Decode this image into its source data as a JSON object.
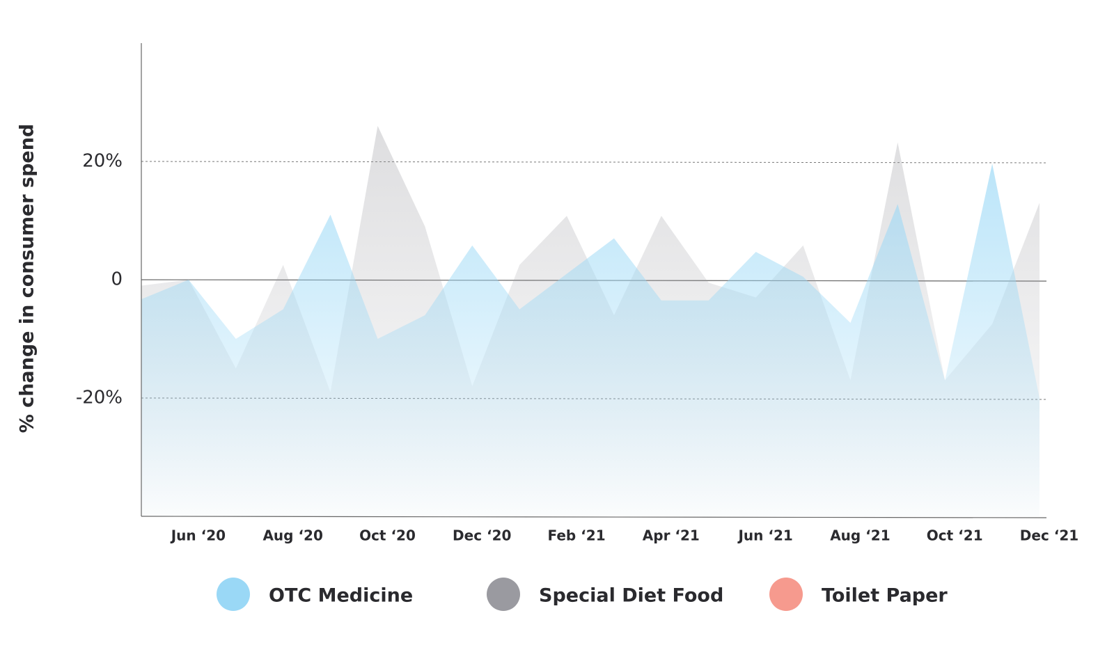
{
  "chart_data": {
    "type": "area",
    "y_label": "% change in consumer spend",
    "categories": [
      null,
      "Jun ‘20",
      null,
      "Aug ‘20",
      null,
      "Oct ‘20",
      null,
      "Dec ‘20",
      null,
      "Feb ‘21",
      null,
      "Apr ‘21",
      null,
      "Jun ‘21",
      null,
      "Aug ‘21",
      null,
      "Oct ‘21",
      null,
      "Dec ‘21"
    ],
    "series": [
      {
        "name": "Special Diet Food",
        "color": "#9a9aa0",
        "values": [
          -1,
          0,
          -15,
          2.5,
          -19,
          26,
          9,
          -18,
          2.5,
          10.8,
          -6,
          10.8,
          -0.5,
          -3,
          5.8,
          -17,
          23.2,
          -17,
          -7.5,
          13
        ]
      },
      {
        "name": "OTC Medicine",
        "color": "#9ad8f6",
        "values": [
          -3.3,
          0,
          -10,
          -5,
          11,
          -10,
          -6,
          5.8,
          -5,
          1,
          7,
          -3.5,
          -3.5,
          4.7,
          0.5,
          -7.3,
          12.8,
          -17,
          19.6,
          -20
        ]
      },
      {
        "name": "Toilet Paper",
        "color": "#f69a8e",
        "values": [
          null,
          null,
          null,
          null,
          null,
          null,
          null,
          null,
          null,
          null,
          null,
          null,
          null,
          null,
          null,
          null,
          null,
          null,
          null,
          null
        ]
      }
    ],
    "legend_order": [
      1,
      0,
      2
    ],
    "ylim": [
      -40,
      40
    ],
    "yticks": [
      {
        "value": -20,
        "label": "-20%"
      },
      0,
      {
        "value": 20,
        "label": "20%"
      }
    ],
    "grid": true
  }
}
